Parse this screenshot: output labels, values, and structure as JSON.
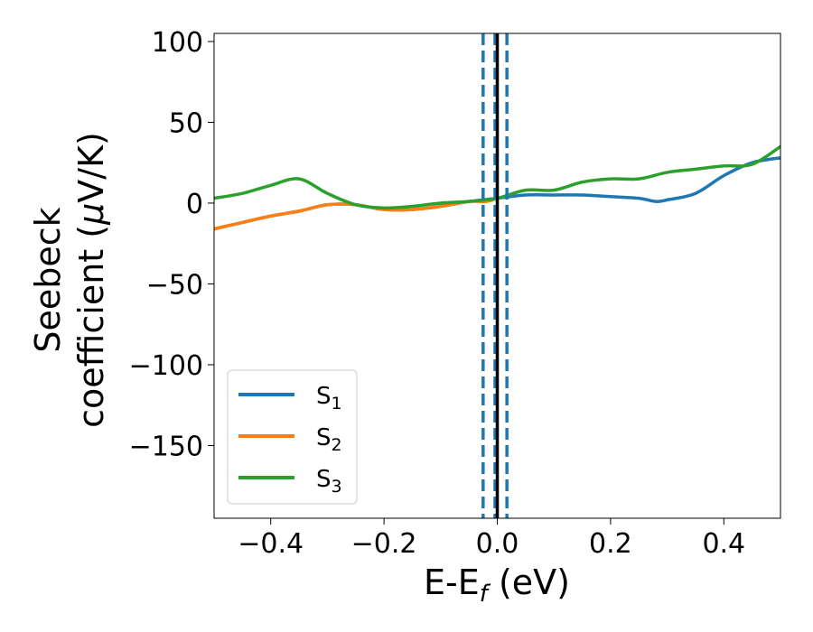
{
  "chart_data": {
    "type": "line",
    "xlabel": {
      "main": "E-E",
      "sub": "f",
      "unit": " (eV)"
    },
    "ylabel": {
      "line1": "Seebeck",
      "line2_text": "coefficient  (",
      "line2_mu": "μ",
      "line2_unit": "V/K)"
    },
    "xlim": [
      -0.5,
      0.5
    ],
    "ylim": [
      -195,
      105
    ],
    "xticks": [
      -0.4,
      -0.2,
      0.0,
      0.2,
      0.4
    ],
    "xtick_labels": [
      "−0.4",
      "−0.2",
      "0.0",
      "0.2",
      "0.4"
    ],
    "yticks": [
      100,
      50,
      0,
      -50,
      -100,
      -150
    ],
    "ytick_labels": [
      "100",
      "50",
      "0",
      "−50",
      "−100",
      "−150"
    ],
    "grid": false,
    "legend_position": "lower-left",
    "vlines": [
      {
        "x": -0.025,
        "style": "dashed",
        "color": "#1f77b4"
      },
      {
        "x": -0.004,
        "style": "dashed",
        "color": "#1f77b4"
      },
      {
        "x": 0.017,
        "style": "dashed",
        "color": "#1f77b4"
      },
      {
        "x": 0.0,
        "style": "solid",
        "color": "#000000"
      }
    ],
    "series": [
      {
        "name": "S",
        "sub": "1",
        "color": "#1f77b4",
        "x": [
          -0.5,
          -0.45,
          -0.4,
          -0.35,
          -0.3,
          -0.25,
          -0.2,
          -0.15,
          -0.1,
          -0.05,
          0.0,
          0.05,
          0.1,
          0.15,
          0.2,
          0.25,
          0.28,
          0.3,
          0.35,
          0.4,
          0.45,
          0.5
        ],
        "y": [
          -16,
          -12,
          -8,
          -5,
          -1,
          -1,
          -4,
          -4,
          -2,
          1,
          3,
          5,
          5,
          5,
          4,
          3,
          1,
          2,
          6,
          17,
          25,
          28
        ]
      },
      {
        "name": "S",
        "sub": "2",
        "color": "#ff7f0e",
        "x": [
          -0.5,
          -0.45,
          -0.4,
          -0.35,
          -0.3,
          -0.25,
          -0.2,
          -0.15,
          -0.1,
          -0.05,
          -0.02,
          0.0
        ],
        "y": [
          -16,
          -12,
          -8,
          -5,
          -1,
          -1,
          -4,
          -4,
          -2,
          1,
          1,
          3
        ]
      },
      {
        "name": "S",
        "sub": "3",
        "color": "#2ca02c",
        "x": [
          -0.5,
          -0.45,
          -0.4,
          -0.35,
          -0.3,
          -0.25,
          -0.2,
          -0.15,
          -0.1,
          -0.05,
          0.0,
          0.05,
          0.1,
          0.15,
          0.2,
          0.25,
          0.3,
          0.35,
          0.4,
          0.45,
          0.5
        ],
        "y": [
          3,
          6,
          11,
          15,
          6,
          -1,
          -3,
          -2,
          0,
          1,
          3,
          8,
          8,
          13,
          15,
          15,
          19,
          21,
          23,
          24,
          35
        ]
      }
    ]
  }
}
